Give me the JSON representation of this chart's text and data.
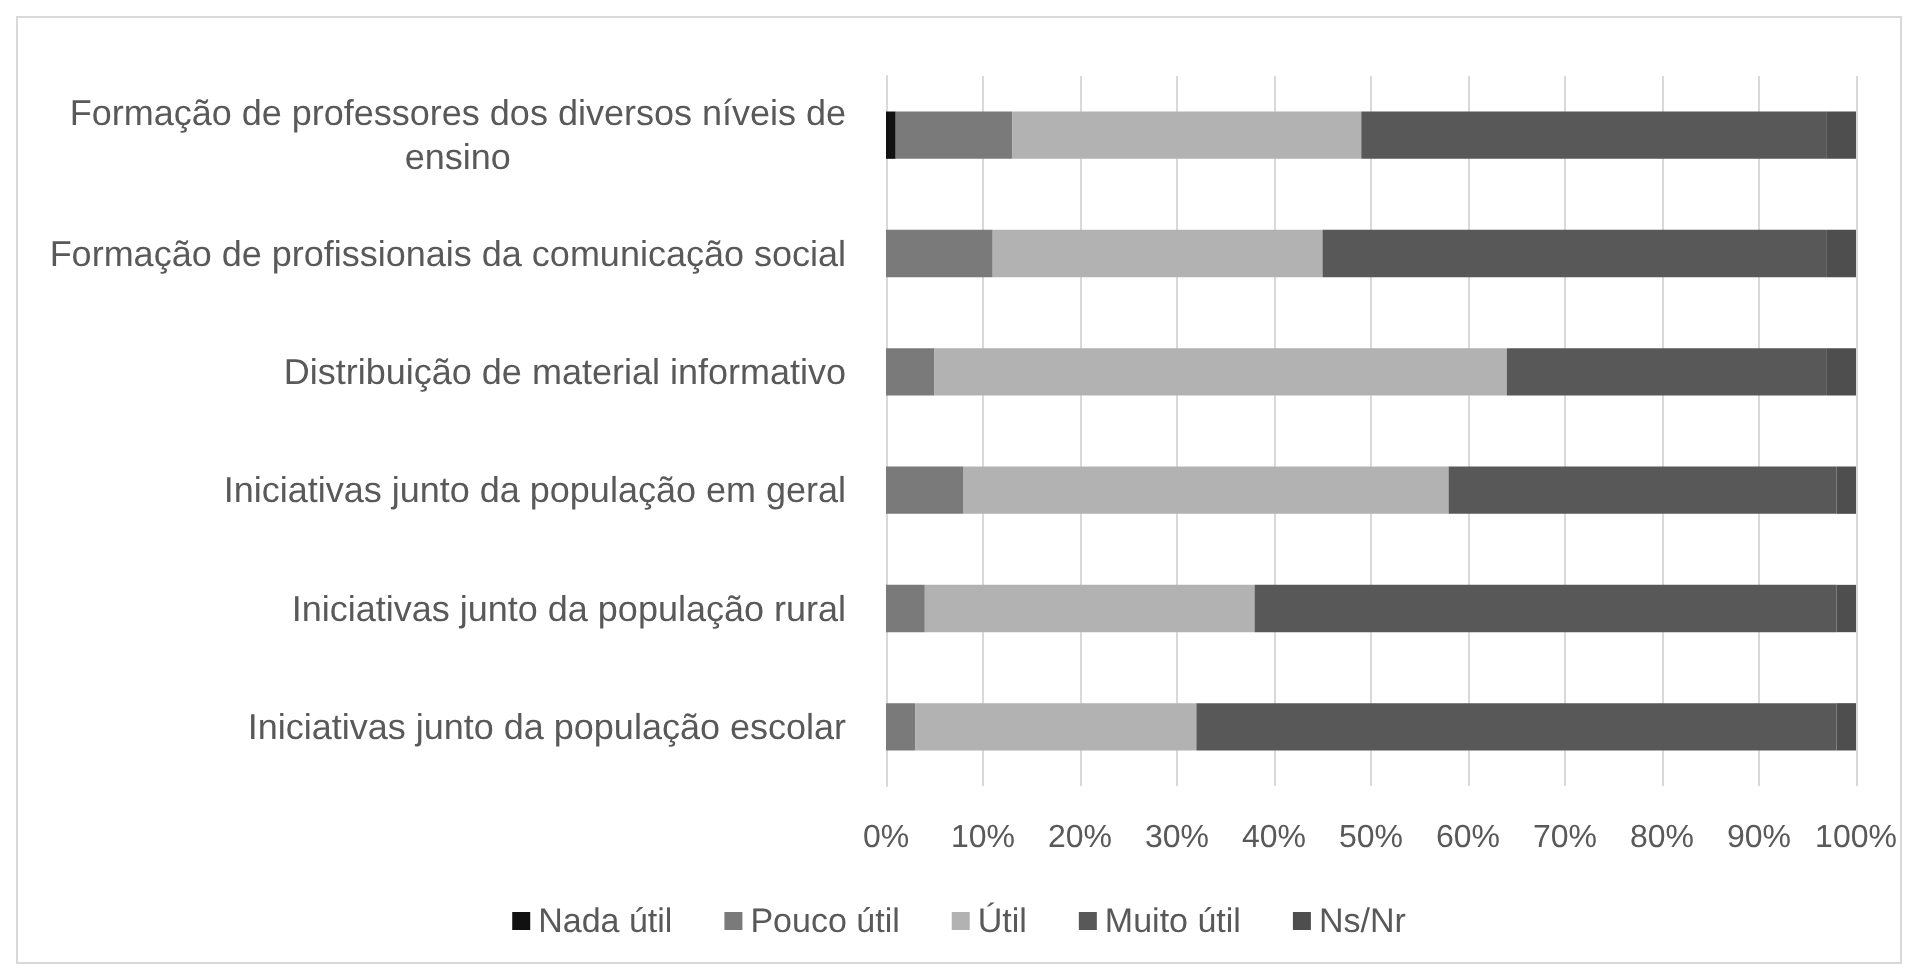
{
  "chart_data": {
    "type": "bar",
    "orientation": "horizontal",
    "stacked": true,
    "categories": [
      "Formação de professores dos diversos níveis de ensino",
      "Formação de profissionais da comunicação social",
      "Distribuição de material informativo",
      "Iniciativas junto da população em geral",
      "Iniciativas junto da população rural",
      "Iniciativas junto da população escolar"
    ],
    "series": [
      {
        "name": "Nada útil",
        "color": "#111111",
        "values": [
          1,
          0,
          0,
          0,
          0,
          0
        ]
      },
      {
        "name": "Pouco útil",
        "color": "#7a7a7a",
        "values": [
          12,
          11,
          5,
          8,
          4,
          3
        ]
      },
      {
        "name": "Útil",
        "color": "#b2b2b2",
        "values": [
          36,
          34,
          59,
          50,
          34,
          29
        ]
      },
      {
        "name": "Muito útil",
        "color": "#585858",
        "values": [
          48,
          52,
          33,
          40,
          60,
          66
        ]
      },
      {
        "name": "Ns/Nr",
        "color": "#4e4e4e",
        "values": [
          3,
          3,
          3,
          2,
          2,
          2
        ]
      }
    ],
    "xlim": [
      0,
      100
    ],
    "xticks": [
      {
        "value": 0,
        "label": "0%"
      },
      {
        "value": 10,
        "label": "10%"
      },
      {
        "value": 20,
        "label": "20%"
      },
      {
        "value": 30,
        "label": "30%"
      },
      {
        "value": 40,
        "label": "40%"
      },
      {
        "value": 50,
        "label": "50%"
      },
      {
        "value": 60,
        "label": "60%"
      },
      {
        "value": 70,
        "label": "70%"
      },
      {
        "value": 80,
        "label": "80%"
      },
      {
        "value": 90,
        "label": "90%"
      },
      {
        "value": 100,
        "label": "100%"
      }
    ],
    "grid": "x",
    "legend": "bottom"
  }
}
